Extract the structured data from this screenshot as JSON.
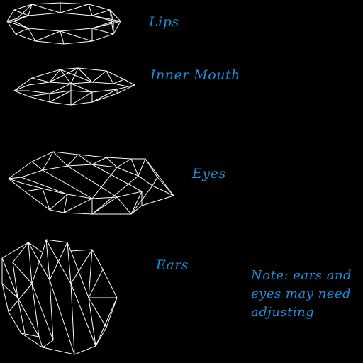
{
  "labels": {
    "lips": "Lips",
    "inner_mouth": "Inner Mouth",
    "eyes": "Eyes",
    "ears": "Ears"
  },
  "note": {
    "line1": "Note: ears and",
    "line2": "eyes may need",
    "line3": "adjusting"
  },
  "colors": {
    "background": "#000000",
    "wireframe": "#ffffff",
    "label_text": "#1a8fd8"
  }
}
